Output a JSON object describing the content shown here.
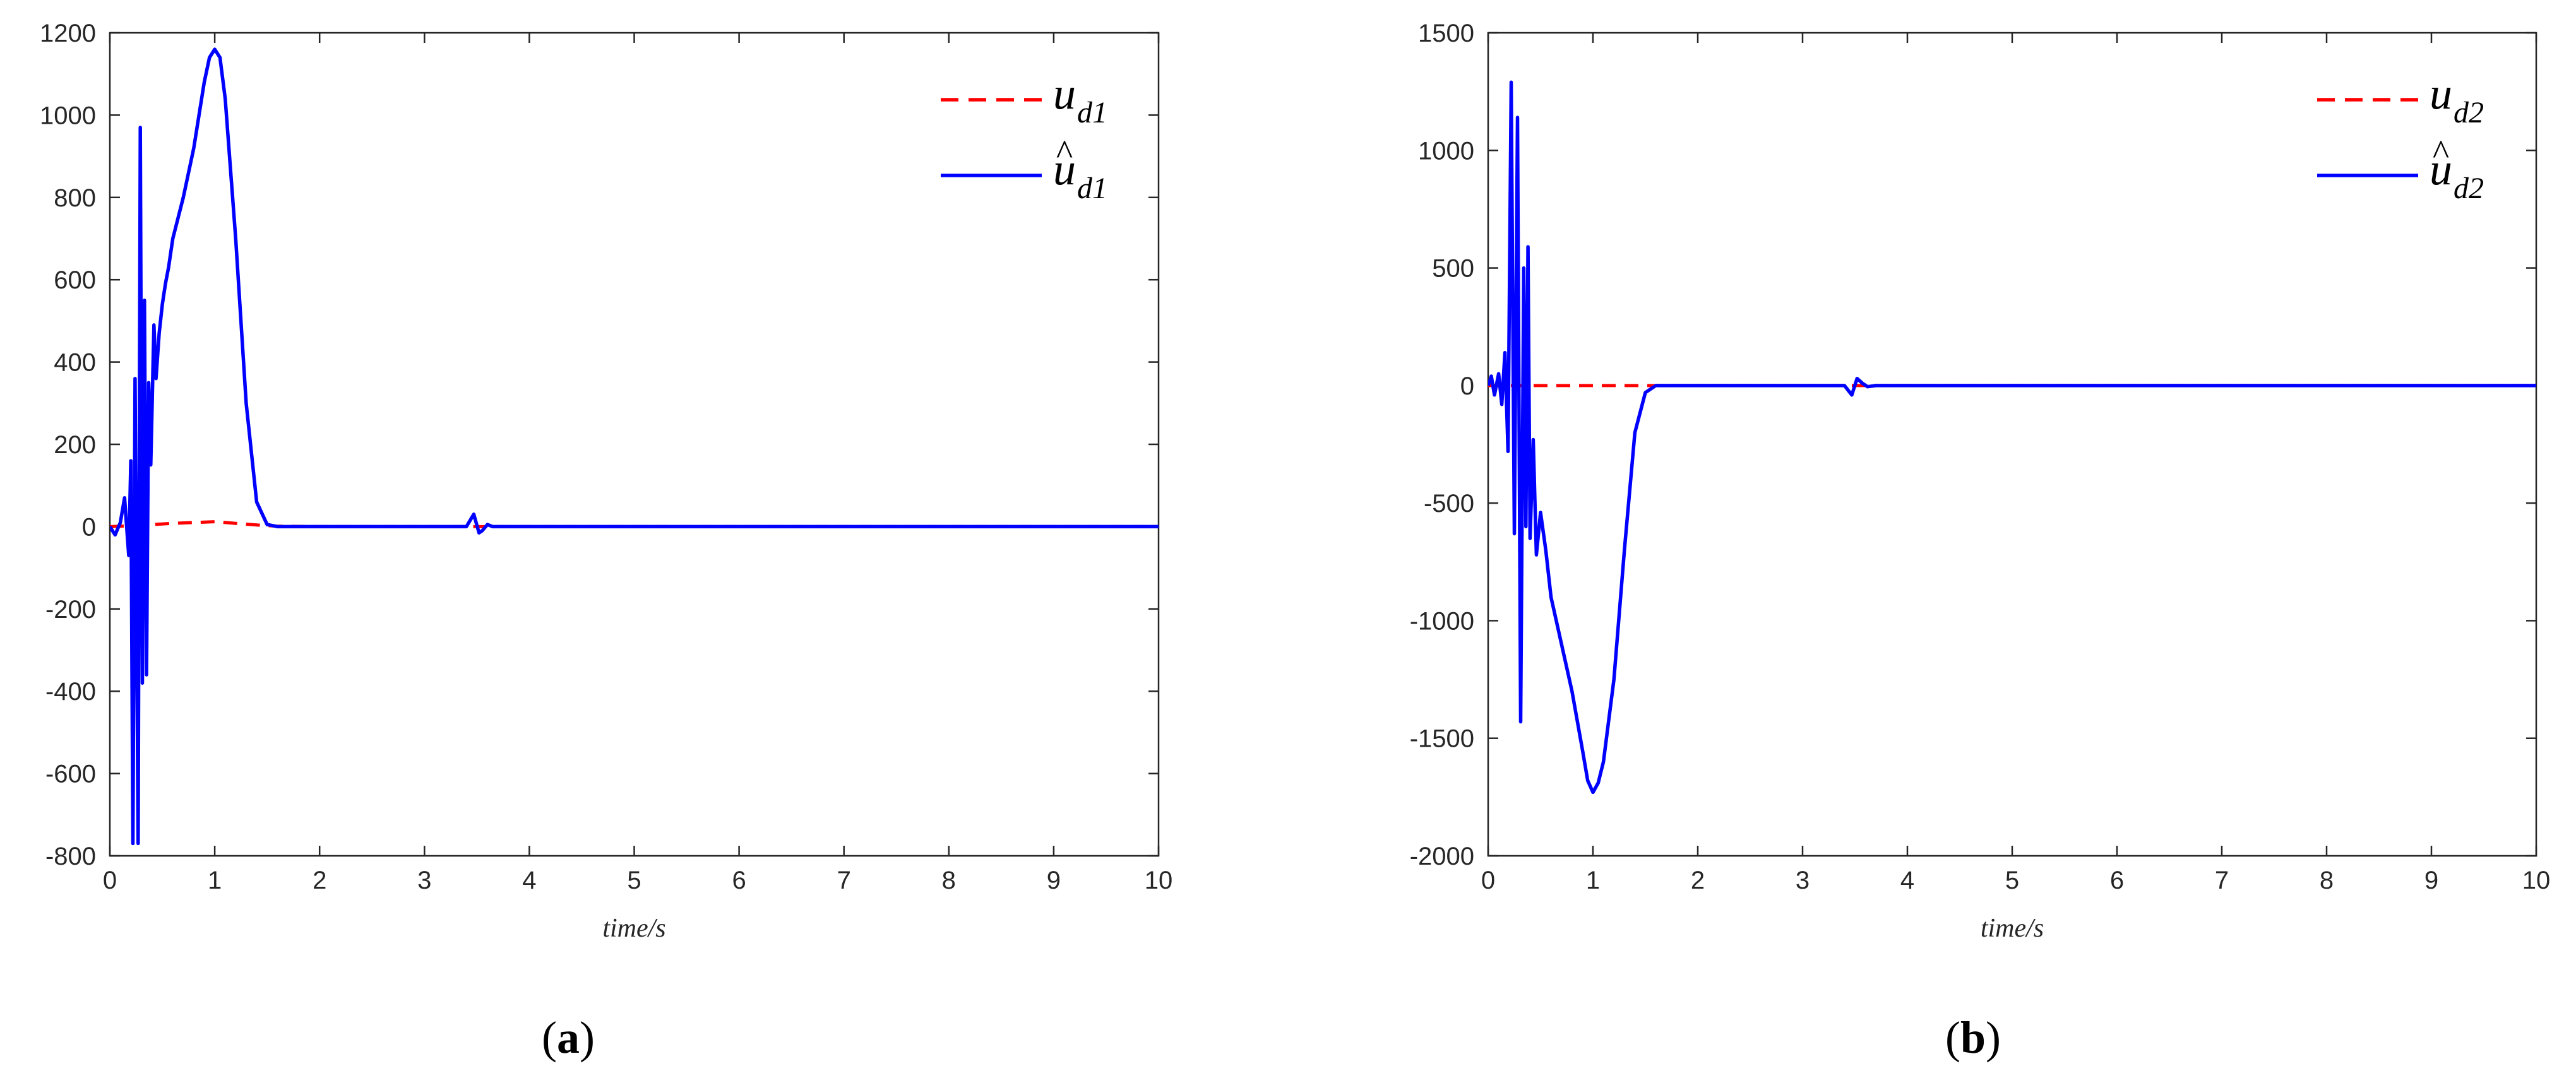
{
  "chart_data": [
    {
      "type": "line",
      "panel_label": "a",
      "xlabel": "time/s",
      "ylabel": "",
      "xlim": [
        0,
        10
      ],
      "ylim": [
        -800,
        1200
      ],
      "xticks": [
        0,
        1,
        2,
        3,
        4,
        5,
        6,
        7,
        8,
        9,
        10
      ],
      "yticks": [
        -800,
        -600,
        -400,
        -200,
        0,
        200,
        400,
        600,
        800,
        1000,
        1200
      ],
      "xtick_labels": [
        "0",
        "1",
        "2",
        "3",
        "4",
        "5",
        "6",
        "7",
        "8",
        "9",
        "10"
      ],
      "ytick_labels": [
        "-800",
        "-600",
        "-400",
        "-200",
        "0",
        "200",
        "400",
        "600",
        "800",
        "1000",
        "1200"
      ],
      "grid": false,
      "legend_position": "top-right",
      "series": [
        {
          "name": "u_d1",
          "legend_base": "u",
          "legend_sub": "d1",
          "legend_hat": false,
          "color": "#ff0000",
          "style": "dashed",
          "x": [
            0,
            0.2,
            0.4,
            0.6,
            0.8,
            1.0,
            1.2,
            1.4,
            1.6,
            2.0,
            10
          ],
          "y": [
            0,
            2,
            5,
            8,
            10,
            12,
            8,
            4,
            1,
            0,
            0
          ]
        },
        {
          "name": "û_d1",
          "legend_base": "u",
          "legend_sub": "d1",
          "legend_hat": true,
          "color": "#0000ff",
          "style": "solid",
          "x": [
            0,
            0.05,
            0.1,
            0.14,
            0.18,
            0.2,
            0.22,
            0.24,
            0.27,
            0.29,
            0.31,
            0.33,
            0.35,
            0.37,
            0.39,
            0.42,
            0.44,
            0.47,
            0.5,
            0.53,
            0.56,
            0.6,
            0.7,
            0.8,
            0.9,
            0.95,
            1.0,
            1.05,
            1.1,
            1.2,
            1.3,
            1.4,
            1.5,
            1.6,
            3.4,
            3.47,
            3.52,
            3.55,
            3.6,
            3.65,
            3.7,
            10
          ],
          "y": [
            0,
            -20,
            10,
            70,
            -70,
            160,
            -770,
            360,
            -770,
            970,
            -380,
            550,
            -360,
            350,
            150,
            490,
            360,
            470,
            540,
            590,
            630,
            700,
            800,
            920,
            1080,
            1140,
            1160,
            1140,
            1040,
            700,
            300,
            60,
            5,
            0,
            0,
            30,
            -15,
            -10,
            5,
            0,
            0,
            0
          ]
        }
      ]
    },
    {
      "type": "line",
      "panel_label": "b",
      "xlabel": "time/s",
      "ylabel": "",
      "xlim": [
        0,
        10
      ],
      "ylim": [
        -2000,
        1500
      ],
      "xticks": [
        0,
        1,
        2,
        3,
        4,
        5,
        6,
        7,
        8,
        9,
        10
      ],
      "yticks": [
        -2000,
        -1500,
        -1000,
        -500,
        0,
        500,
        1000,
        1500
      ],
      "xtick_labels": [
        "0",
        "1",
        "2",
        "3",
        "4",
        "5",
        "6",
        "7",
        "8",
        "9",
        "10"
      ],
      "ytick_labels": [
        "-2000",
        "-1500",
        "-1000",
        "-500",
        "0",
        "500",
        "1000",
        "1500"
      ],
      "grid": false,
      "legend_position": "top-right",
      "series": [
        {
          "name": "u_d2",
          "legend_base": "u",
          "legend_sub": "d2",
          "legend_hat": false,
          "color": "#ff0000",
          "style": "dashed",
          "x": [
            0,
            0.5,
            1.0,
            1.5,
            10
          ],
          "y": [
            0,
            0,
            0,
            0,
            0
          ]
        },
        {
          "name": "û_d2",
          "legend_base": "u",
          "legend_sub": "d2",
          "legend_hat": true,
          "color": "#0000ff",
          "style": "solid",
          "x": [
            0,
            0.03,
            0.06,
            0.1,
            0.13,
            0.16,
            0.19,
            0.22,
            0.25,
            0.28,
            0.31,
            0.34,
            0.36,
            0.38,
            0.4,
            0.43,
            0.46,
            0.5,
            0.55,
            0.6,
            0.65,
            0.7,
            0.8,
            0.9,
            0.95,
            1.0,
            1.05,
            1.1,
            1.2,
            1.3,
            1.4,
            1.5,
            1.6,
            3.4,
            3.47,
            3.52,
            3.57,
            3.62,
            3.7,
            10
          ],
          "y": [
            0,
            40,
            -40,
            50,
            -80,
            140,
            -280,
            1290,
            -630,
            1140,
            -1430,
            500,
            -600,
            590,
            -650,
            -230,
            -720,
            -540,
            -700,
            -900,
            -1000,
            -1100,
            -1300,
            -1550,
            -1680,
            -1730,
            -1690,
            -1600,
            -1250,
            -700,
            -200,
            -30,
            0,
            0,
            -40,
            30,
            10,
            -5,
            0,
            0
          ]
        }
      ]
    }
  ]
}
